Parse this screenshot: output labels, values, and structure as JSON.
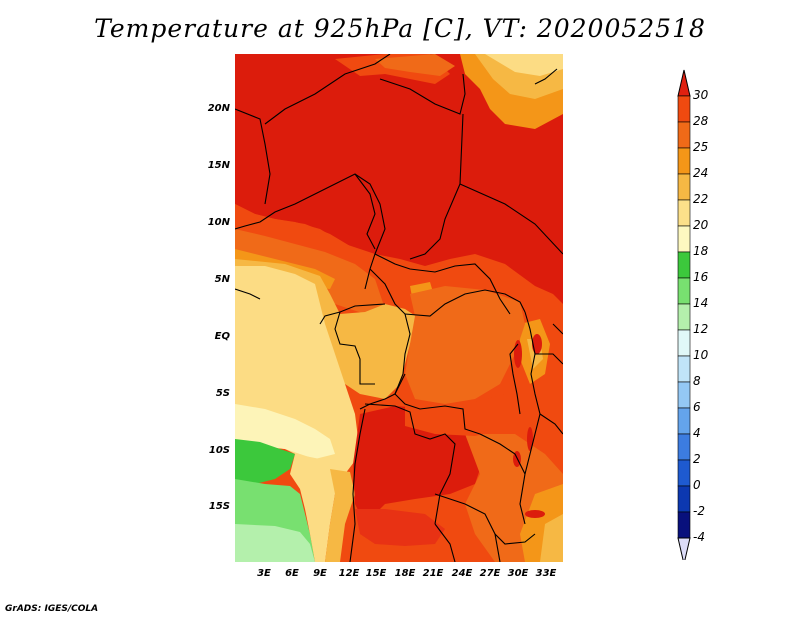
{
  "title": "Temperature at 925hPa [C], VT: 2020052518",
  "credit": "GrADS: IGES/COLA",
  "lat_ticks": [
    "20N",
    "15N",
    "10N",
    "5N",
    "EQ",
    "5S",
    "10S",
    "15S"
  ],
  "lon_ticks": [
    "3E",
    "6E",
    "9E",
    "12E",
    "15E",
    "18E",
    "21E",
    "24E",
    "27E",
    "30E",
    "33E"
  ],
  "colorbar": {
    "levels": [
      "30",
      "28",
      "25",
      "24",
      "22",
      "20",
      "18",
      "16",
      "14",
      "12",
      "10",
      "8",
      "6",
      "4",
      "2",
      "0",
      "-2",
      "-4"
    ],
    "colors": [
      "#e02010",
      "#f04a10",
      "#f06a18",
      "#f49618",
      "#f6b844",
      "#fce08a",
      "#fdf8c0",
      "#3cc83c",
      "#78e070",
      "#b4f0ac",
      "#e0f8f8",
      "#c0e4f8",
      "#94c8f4",
      "#64a4ec",
      "#3c7ce0",
      "#1e5ad0",
      "#0c38b0",
      "#08107c",
      "#dcdcf8"
    ]
  },
  "map_colors": {
    "c30": "#dc1c0c",
    "c28": "#f04a10",
    "c25": "#f06a18",
    "c24": "#f49618",
    "c22": "#f6b844",
    "c20": "#fcdc84",
    "c18": "#fdf4b8",
    "c16": "#3cc83c",
    "c14": "#78e070",
    "c12": "#b4f0ac"
  }
}
